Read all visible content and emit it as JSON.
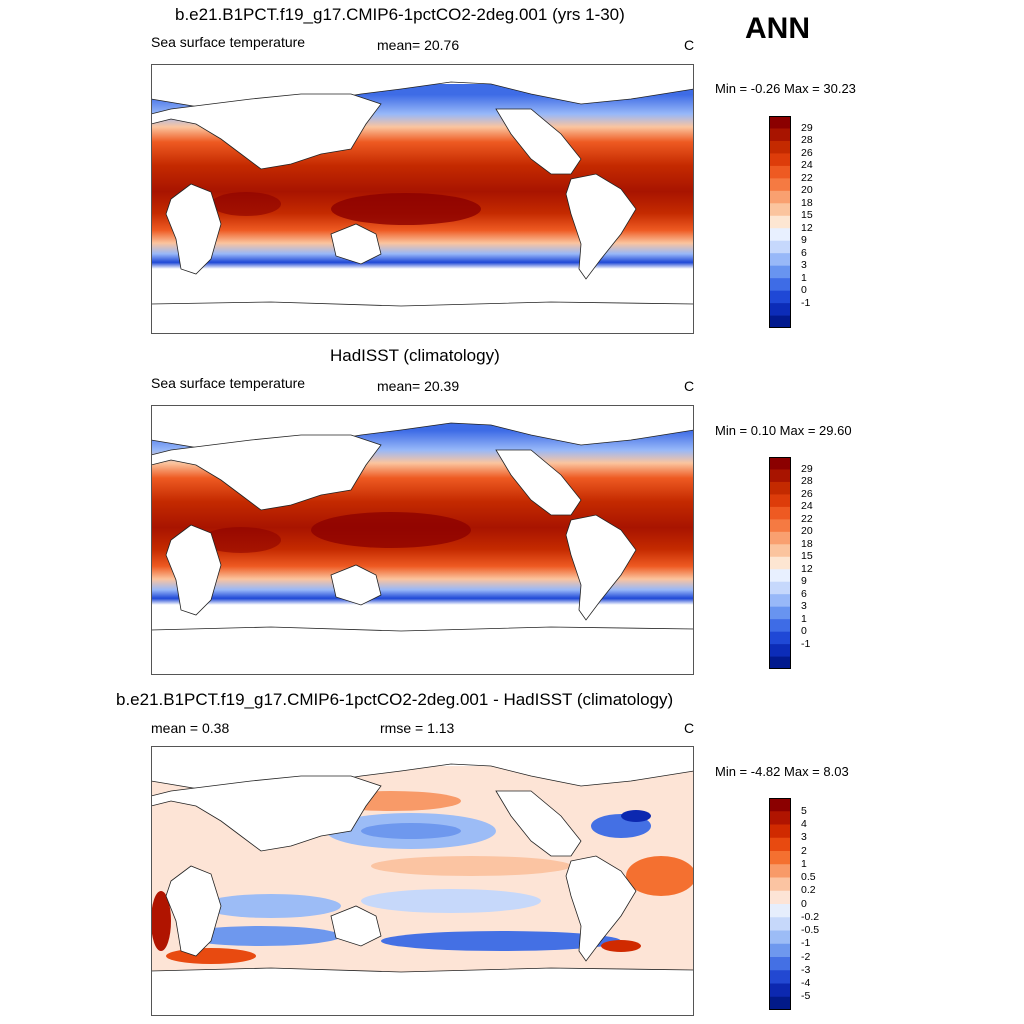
{
  "ann_label": "ANN",
  "chart_data": [
    {
      "type": "heatmap",
      "title": "b.e21.B1PCT.f19_g17.CMIP6-1pctCO2-2deg.001 (yrs 1-30)",
      "left_label": "Sea surface temperature",
      "center_label": "mean=  20.76",
      "units": "C",
      "minmax": "Min =  -0.26 Max =  30.23",
      "palette": "warm",
      "levels": [
        "29",
        "28",
        "26",
        "24",
        "22",
        "20",
        "18",
        "15",
        "12",
        "9",
        "6",
        "3",
        "1",
        "0",
        "-1"
      ]
    },
    {
      "type": "heatmap",
      "title": "HadISST (climatology)",
      "left_label": "Sea surface temperature",
      "center_label": "mean=  20.39",
      "units": "C",
      "minmax": "Min =   0.10 Max =  29.60",
      "palette": "warm",
      "levels": [
        "29",
        "28",
        "26",
        "24",
        "22",
        "20",
        "18",
        "15",
        "12",
        "9",
        "6",
        "3",
        "1",
        "0",
        "-1"
      ]
    },
    {
      "type": "heatmap",
      "title": "b.e21.B1PCT.f19_g17.CMIP6-1pctCO2-2deg.001 - HadISST (climatology)",
      "left_label": "mean =   0.38",
      "center_label": "rmse =   1.13",
      "units": "C",
      "minmax": "Min =  -4.82 Max =   8.03",
      "palette": "diverging",
      "levels": [
        "5",
        "4",
        "3",
        "2",
        "1",
        "0.5",
        "0.2",
        "0",
        "-0.2",
        "-0.5",
        "-1",
        "-2",
        "-3",
        "-4",
        "-5"
      ]
    }
  ],
  "colors": {
    "warm": [
      "#8b0000",
      "#a81400",
      "#c42a00",
      "#dd3c0a",
      "#ee5a22",
      "#f57a42",
      "#f9a070",
      "#fbc49e",
      "#fde6d2",
      "#e8f0ff",
      "#c6d8fc",
      "#98b8f8",
      "#6894f0",
      "#3e6ce6",
      "#1f48d6",
      "#0c2cb8",
      "#021a8e"
    ],
    "diverging": [
      "#8b0000",
      "#b01400",
      "#d02a00",
      "#e84a10",
      "#f47030",
      "#f89a68",
      "#fbc4a2",
      "#fde4d6",
      "#e6eefc",
      "#c6d8fa",
      "#9cbcf6",
      "#6e98ee",
      "#4470e4",
      "#2248d2",
      "#0c28b0",
      "#021a88"
    ]
  }
}
